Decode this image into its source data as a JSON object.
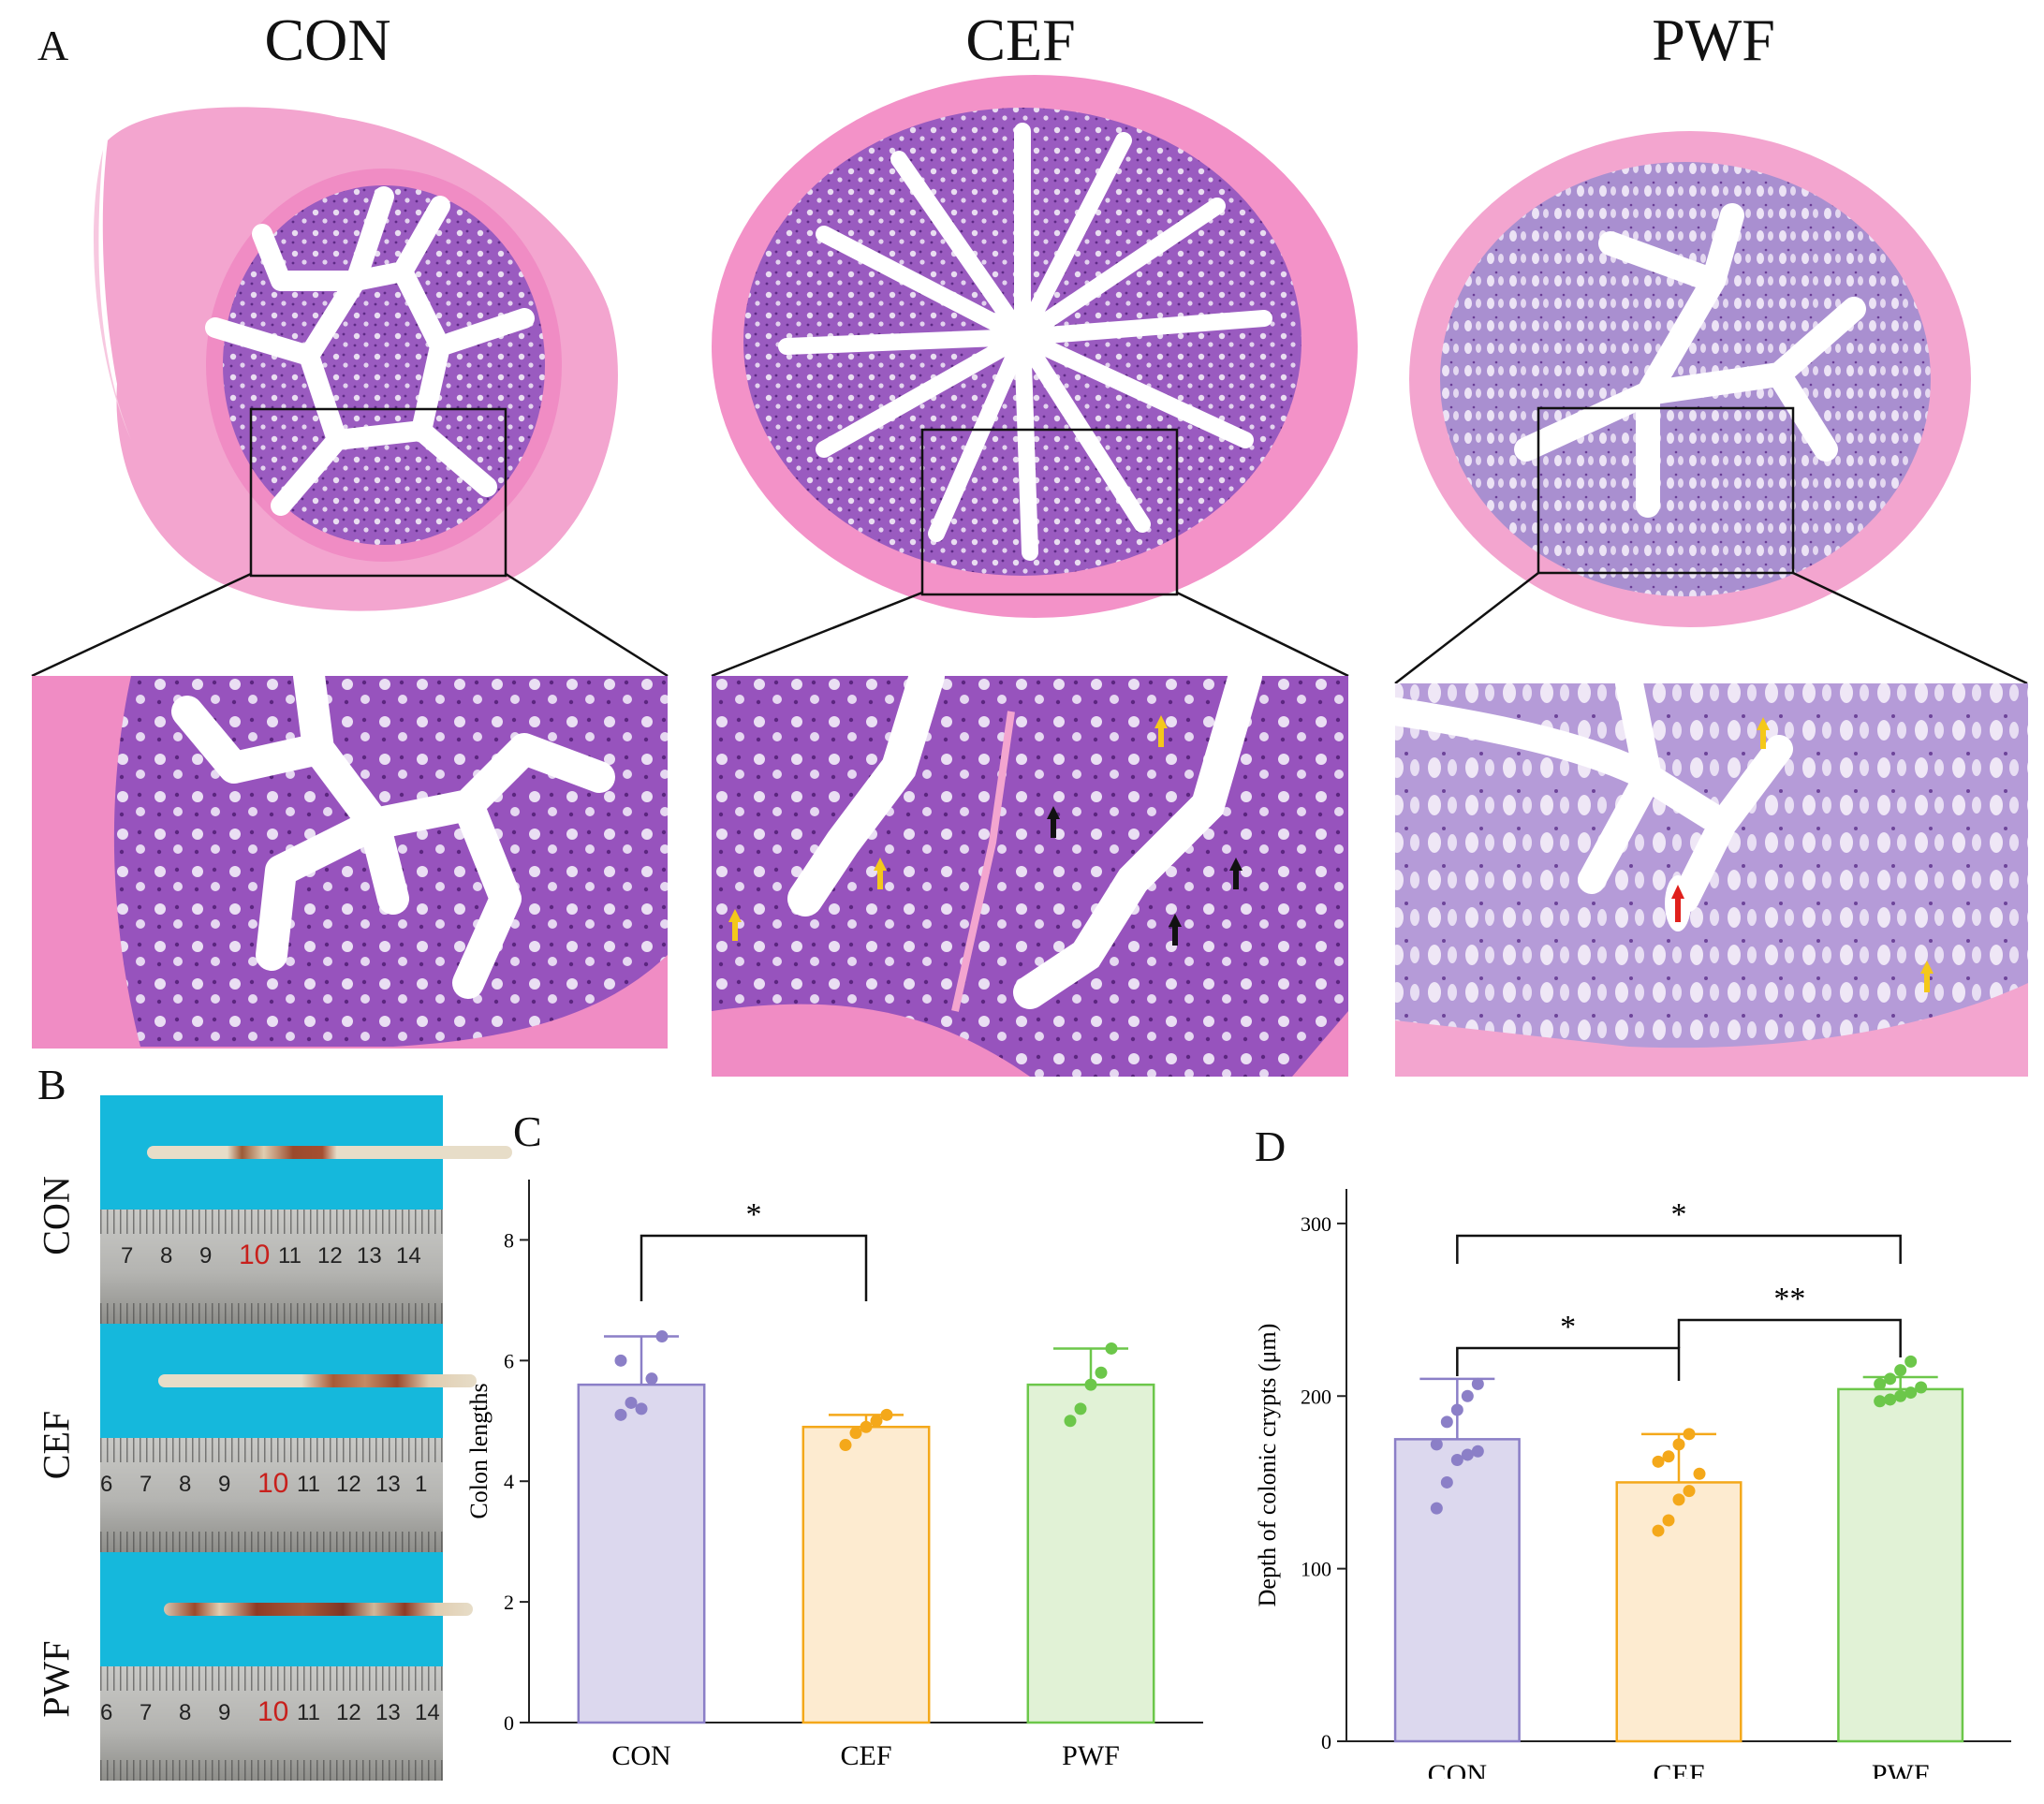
{
  "panels": {
    "A": {
      "letter": "A",
      "groups": [
        "CON",
        "CEF",
        "PWF"
      ]
    },
    "B": {
      "letter": "B",
      "groups": [
        "CON",
        "CEF",
        "PWF"
      ],
      "ruler_rows": [
        [
          "7",
          "8",
          "9",
          "10",
          "11",
          "12",
          "13",
          "14"
        ],
        [
          "6",
          "7",
          "8",
          "9",
          "10",
          "11",
          "12",
          "13",
          "1"
        ],
        [
          "6",
          "7",
          "8",
          "9",
          "10",
          "11",
          "12",
          "13",
          "14"
        ]
      ],
      "highlight": "10"
    },
    "C": {
      "letter": "C"
    },
    "D": {
      "letter": "D"
    }
  },
  "colors": {
    "CON": "#8b7fc7",
    "CEF": "#f4a81a",
    "PWF": "#6cc74a",
    "CON_fill": "#dcd8ee",
    "CEF_fill": "#fdebd0",
    "PWF_fill": "#e1f2d6",
    "tissue_pink": "#f08cc4",
    "tissue_purple": "#9a5bc0"
  },
  "chart_data": [
    {
      "type": "bar",
      "panel": "C",
      "categories": [
        "CON",
        "CEF",
        "PWF"
      ],
      "values": [
        5.6,
        4.9,
        5.6
      ],
      "errors": [
        0.8,
        0.2,
        0.6
      ],
      "points": [
        [
          5.1,
          5.3,
          5.2,
          5.7,
          6.4,
          6.0
        ],
        [
          4.6,
          4.8,
          4.9,
          5.0,
          5.1
        ],
        [
          5.0,
          5.2,
          5.6,
          5.8,
          6.2
        ]
      ],
      "ylabel": "Colon lengths",
      "xlabel": "",
      "ylim": [
        0,
        9
      ],
      "yticks": [
        0,
        2,
        4,
        6,
        8
      ],
      "significance": [
        {
          "from": 0,
          "to": 1,
          "label": "*"
        }
      ]
    },
    {
      "type": "bar",
      "panel": "D",
      "categories": [
        "CON",
        "CEF",
        "PWF"
      ],
      "values": [
        175,
        150,
        204
      ],
      "errors": [
        35,
        28,
        7
      ],
      "points": [
        [
          135,
          150,
          163,
          166,
          168,
          172,
          185,
          192,
          200,
          207
        ],
        [
          122,
          128,
          140,
          145,
          155,
          162,
          165,
          172,
          178
        ],
        [
          197,
          198,
          200,
          202,
          205,
          207,
          210,
          215,
          220
        ]
      ],
      "ylabel": "Depth of colonic crypts (μm)",
      "xlabel": "",
      "ylim": [
        0,
        320
      ],
      "yticks": [
        0,
        100,
        200,
        300
      ],
      "significance": [
        {
          "from": 0,
          "to": 1,
          "label": "*"
        },
        {
          "from": 1,
          "to": 2,
          "label": "**"
        },
        {
          "from": 0,
          "to": 2,
          "label": "*"
        }
      ]
    }
  ]
}
